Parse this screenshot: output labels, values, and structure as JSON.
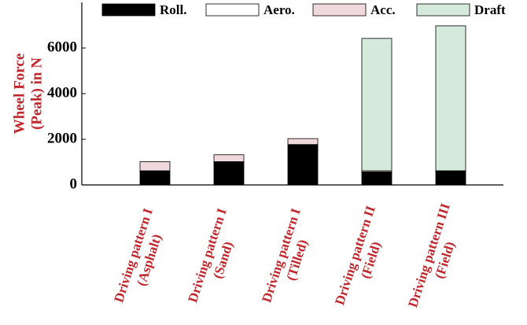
{
  "chart_data": {
    "type": "stacked_bar",
    "y_label": [
      "Wheel Force",
      "(Peak) in N"
    ],
    "categories": [
      [
        "Driving pattern I",
        "(Asphalt)"
      ],
      [
        "Driving pattern I",
        "(Sand)"
      ],
      [
        "Driving pattern I",
        "(Tilled)"
      ],
      [
        "Driving pattern II",
        "(Field)"
      ],
      [
        "Driving pattern III",
        "(Field)"
      ]
    ],
    "series": [
      {
        "name": "Roll.",
        "color": "#000000",
        "values": [
          600,
          1000,
          1750,
          550,
          600
        ]
      },
      {
        "name": "Aero.",
        "color": "#ffffff",
        "values": [
          20,
          20,
          20,
          20,
          20
        ]
      },
      {
        "name": "Acc.",
        "color": "#efd9dc",
        "values": [
          400,
          300,
          260,
          50,
          0
        ]
      },
      {
        "name": "Draft",
        "color": "#d5eadb",
        "values": [
          0,
          0,
          0,
          5800,
          6350
        ]
      }
    ],
    "ylim": [
      0,
      8000
    ],
    "yticks": [
      0,
      2000,
      4000,
      6000
    ]
  }
}
